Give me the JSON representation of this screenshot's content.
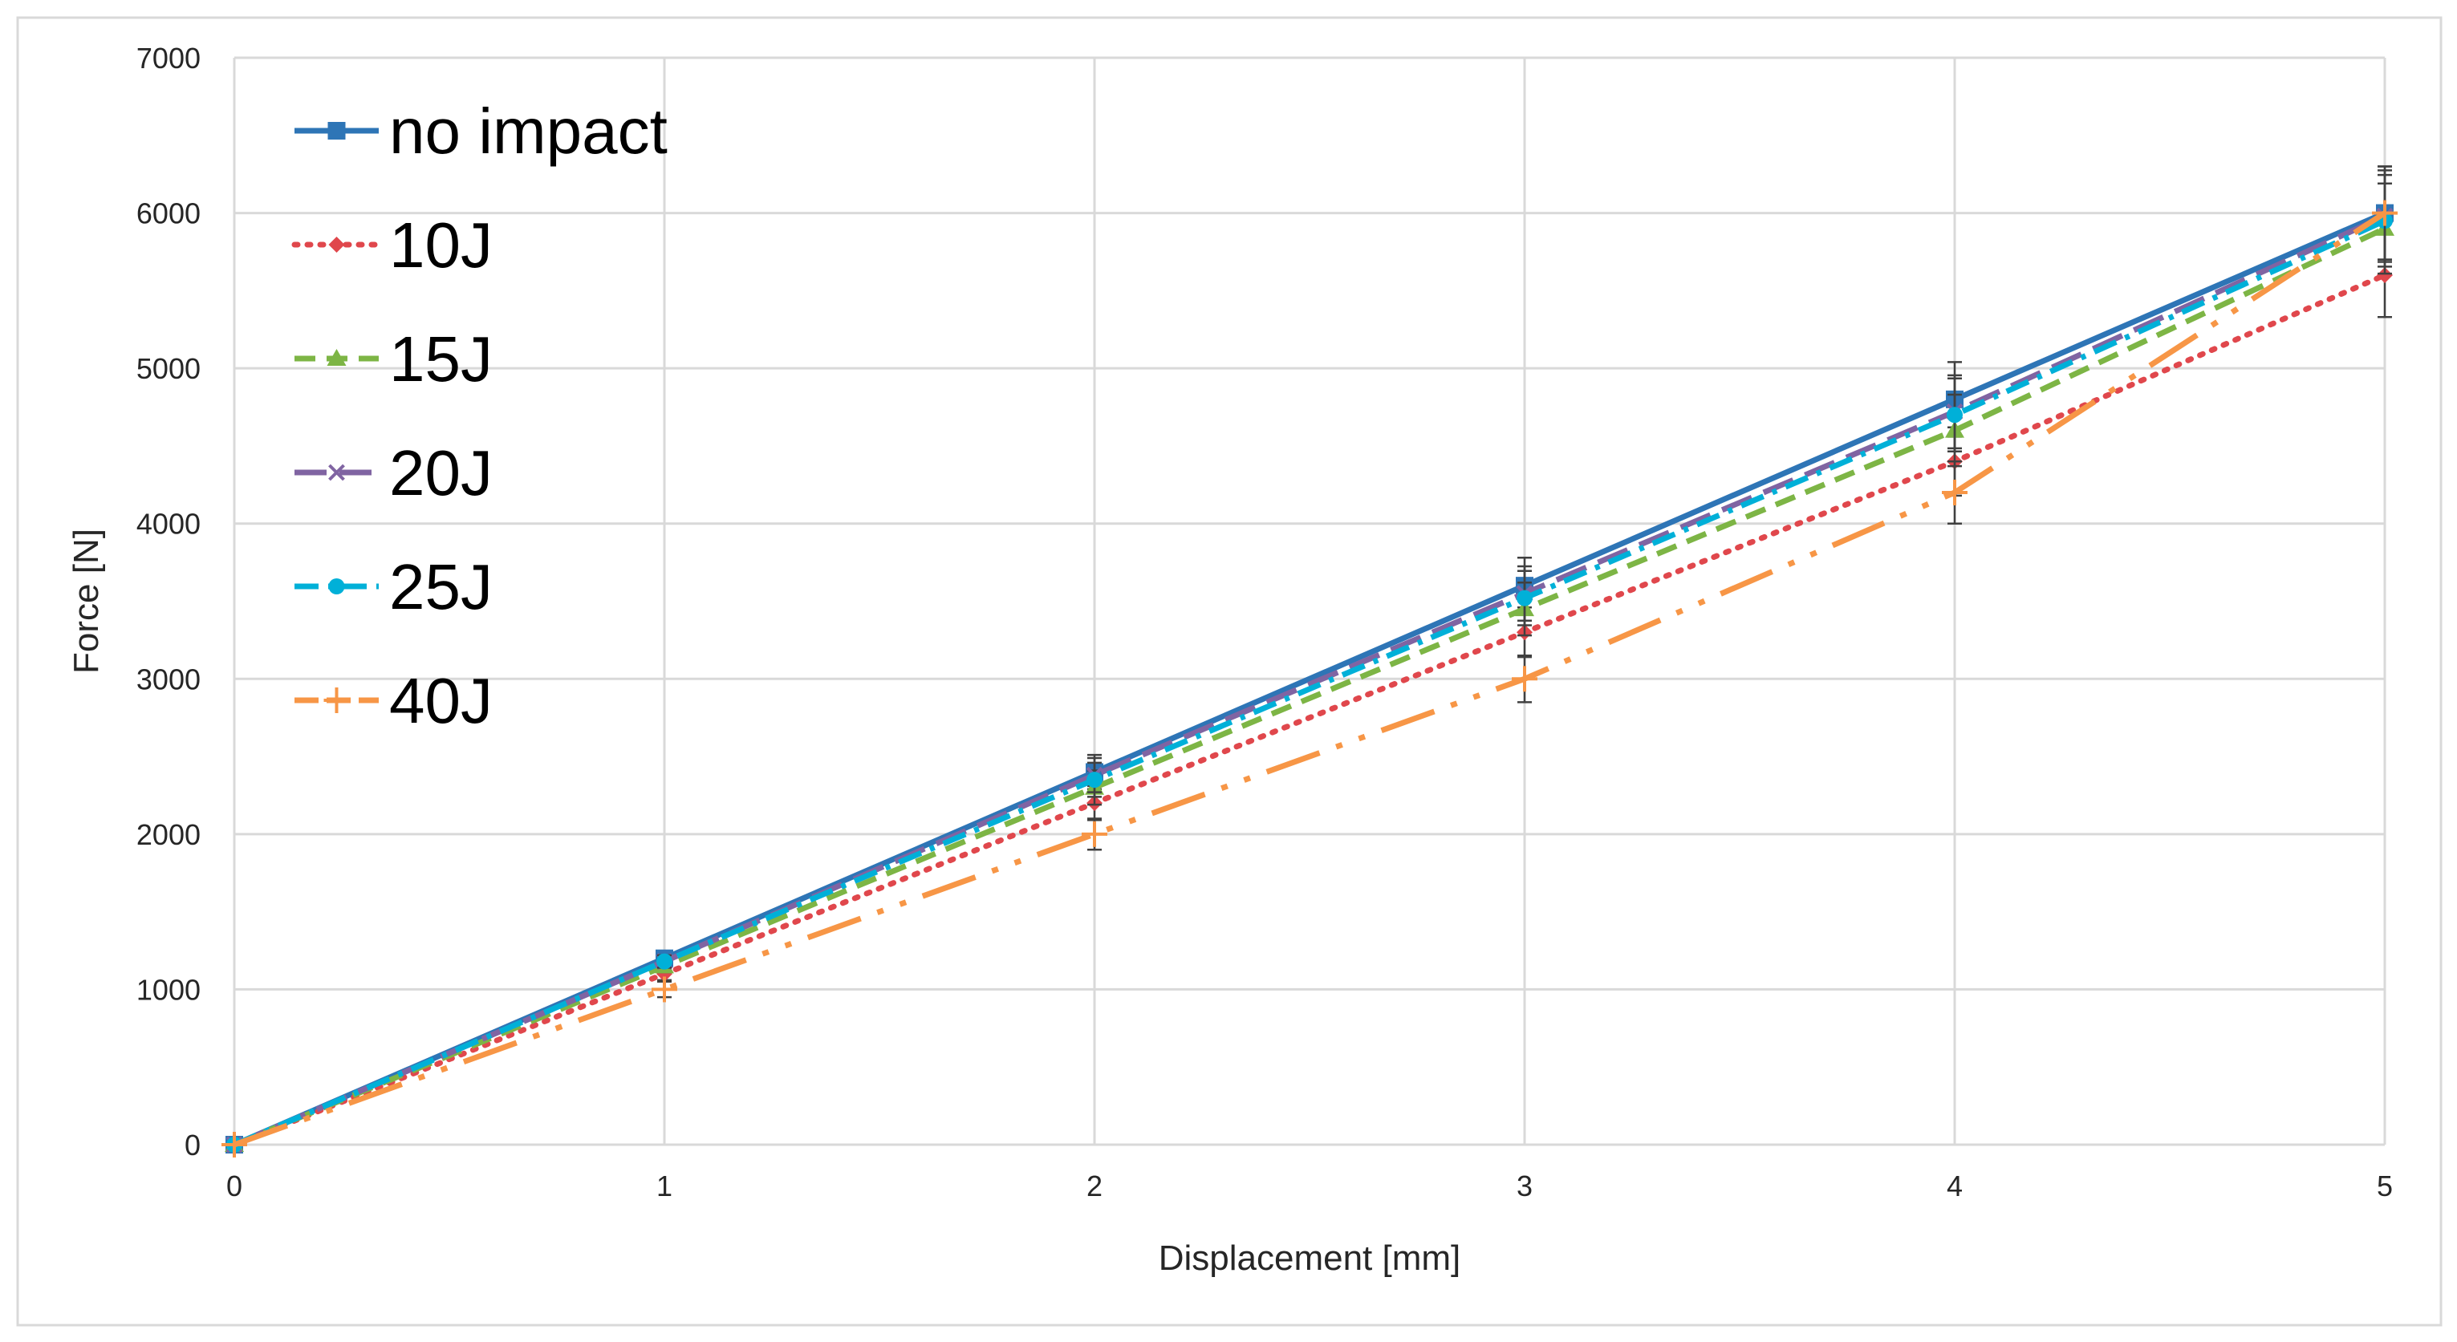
{
  "chart_data": {
    "type": "line",
    "title": "",
    "xlabel": "Displacement [mm]",
    "ylabel": "Force [N]",
    "x": [
      0,
      1,
      2,
      3,
      4,
      5
    ],
    "xlim": [
      0,
      5
    ],
    "ylim": [
      0,
      7000
    ],
    "xticks": [
      "0",
      "1",
      "2",
      "3",
      "4",
      "5"
    ],
    "yticks": [
      "0",
      "1000",
      "2000",
      "3000",
      "4000",
      "5000",
      "6000",
      "7000"
    ],
    "grid": true,
    "legend_position": "top-left",
    "series": [
      {
        "name": "no impact",
        "values": [
          0,
          1200,
          2400,
          3600,
          4800,
          6000
        ],
        "error": [
          0,
          40,
          110,
          180,
          240,
          300
        ],
        "color": "#2E75B6",
        "style": "solid",
        "marker": "square"
      },
      {
        "name": "10J",
        "values": [
          0,
          1100,
          2200,
          3300,
          4400,
          5600
        ],
        "error": [
          0,
          40,
          110,
          160,
          220,
          270
        ],
        "color": "#E0474C",
        "style": "dotted",
        "marker": "diamond"
      },
      {
        "name": "15J",
        "values": [
          0,
          1150,
          2300,
          3450,
          4600,
          5900
        ],
        "error": [
          0,
          40,
          110,
          170,
          230,
          290
        ],
        "color": "#7DB545",
        "style": "dashed",
        "marker": "triangle"
      },
      {
        "name": "20J",
        "values": [
          0,
          1180,
          2380,
          3550,
          4720,
          5980
        ],
        "error": [
          0,
          40,
          110,
          175,
          235,
          295
        ],
        "color": "#8064A2",
        "style": "longdash",
        "marker": "x"
      },
      {
        "name": "25J",
        "values": [
          0,
          1180,
          2350,
          3520,
          4700,
          5950
        ],
        "error": [
          0,
          40,
          110,
          175,
          235,
          295
        ],
        "color": "#00B0D8",
        "style": "dashdot",
        "marker": "circle"
      },
      {
        "name": "40J",
        "values": [
          0,
          1000,
          2000,
          3000,
          4200,
          6000
        ],
        "error": [
          0,
          50,
          100,
          150,
          200,
          300
        ],
        "color": "#F79646",
        "style": "longdashdotdot",
        "marker": "plus"
      }
    ]
  }
}
